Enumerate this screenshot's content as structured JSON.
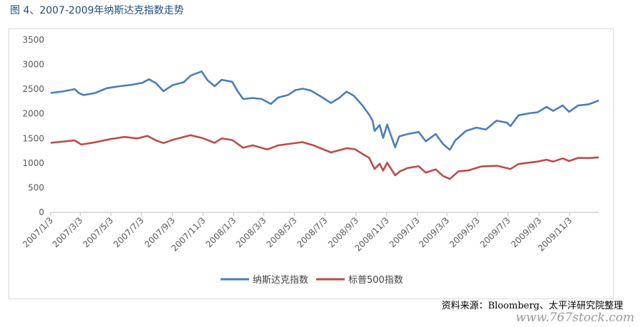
{
  "figure": {
    "title": "图 4、2007-2009年纳斯达克指数走势",
    "source": "资料来源：Bloomberg、太平洋研究院整理",
    "watermark": "www.767stock.com"
  },
  "chart_data": {
    "type": "line",
    "title": "",
    "xlabel": "",
    "ylabel": "",
    "ylim": [
      0,
      3500
    ],
    "yticks": [
      0,
      500,
      1000,
      1500,
      2000,
      2500,
      3000,
      3500
    ],
    "xticks": [
      "2007/1/3",
      "2007/3/3",
      "2007/5/3",
      "2007/7/3",
      "2007/9/3",
      "2007/11/3",
      "2008/1/3",
      "2008/3/3",
      "2008/5/3",
      "2008/7/3",
      "2008/9/3",
      "2008/11/3",
      "2009/1/3",
      "2009/3/3",
      "2009/5/3",
      "2009/7/3",
      "2009/9/3",
      "2009/11/3"
    ],
    "x_range": [
      "2007/1/3",
      "2009/12/31"
    ],
    "grid": false,
    "legend": "bottom",
    "series": [
      {
        "name": "纳斯达克指数",
        "color": "#4a7ebb",
        "points": [
          [
            "2007/1/3",
            2423
          ],
          [
            "2007/1/25",
            2450
          ],
          [
            "2007/2/20",
            2500
          ],
          [
            "2007/3/1",
            2415
          ],
          [
            "2007/3/10",
            2380
          ],
          [
            "2007/4/1",
            2420
          ],
          [
            "2007/4/25",
            2520
          ],
          [
            "2007/5/20",
            2560
          ],
          [
            "2007/6/15",
            2590
          ],
          [
            "2007/7/5",
            2630
          ],
          [
            "2007/7/18",
            2700
          ],
          [
            "2007/8/1",
            2620
          ],
          [
            "2007/8/16",
            2460
          ],
          [
            "2007/9/3",
            2580
          ],
          [
            "2007/9/25",
            2640
          ],
          [
            "2007/10/10",
            2780
          ],
          [
            "2007/10/31",
            2860
          ],
          [
            "2007/11/12",
            2680
          ],
          [
            "2007/11/26",
            2560
          ],
          [
            "2007/12/10",
            2690
          ],
          [
            "2007/12/31",
            2650
          ],
          [
            "2008/1/10",
            2470
          ],
          [
            "2008/1/22",
            2300
          ],
          [
            "2008/2/10",
            2320
          ],
          [
            "2008/2/28",
            2300
          ],
          [
            "2008/3/17",
            2200
          ],
          [
            "2008/4/1",
            2330
          ],
          [
            "2008/4/20",
            2380
          ],
          [
            "2008/5/5",
            2480
          ],
          [
            "2008/5/20",
            2510
          ],
          [
            "2008/6/5",
            2470
          ],
          [
            "2008/6/25",
            2350
          ],
          [
            "2008/7/15",
            2220
          ],
          [
            "2008/7/31",
            2320
          ],
          [
            "2008/8/15",
            2450
          ],
          [
            "2008/8/29",
            2370
          ],
          [
            "2008/9/15",
            2180
          ],
          [
            "2008/9/29",
            1983
          ],
          [
            "2008/10/6",
            1860
          ],
          [
            "2008/10/10",
            1650
          ],
          [
            "2008/10/20",
            1770
          ],
          [
            "2008/10/27",
            1510
          ],
          [
            "2008/11/4",
            1780
          ],
          [
            "2008/11/20",
            1320
          ],
          [
            "2008/11/28",
            1540
          ],
          [
            "2008/12/15",
            1590
          ],
          [
            "2009/1/6",
            1630
          ],
          [
            "2009/1/20",
            1440
          ],
          [
            "2009/2/9",
            1590
          ],
          [
            "2009/2/23",
            1390
          ],
          [
            "2009/3/9",
            1268
          ],
          [
            "2009/3/20",
            1460
          ],
          [
            "2009/4/10",
            1650
          ],
          [
            "2009/5/1",
            1720
          ],
          [
            "2009/5/20",
            1680
          ],
          [
            "2009/6/10",
            1860
          ],
          [
            "2009/7/1",
            1820
          ],
          [
            "2009/7/8",
            1750
          ],
          [
            "2009/7/24",
            1970
          ],
          [
            "2009/8/15",
            2010
          ],
          [
            "2009/8/31",
            2030
          ],
          [
            "2009/9/18",
            2140
          ],
          [
            "2009/10/1",
            2060
          ],
          [
            "2009/10/20",
            2170
          ],
          [
            "2009/11/2",
            2040
          ],
          [
            "2009/11/20",
            2170
          ],
          [
            "2009/12/10",
            2190
          ],
          [
            "2009/12/31",
            2269
          ]
        ]
      },
      {
        "name": "标普500指数",
        "color": "#be4b48",
        "points": [
          [
            "2007/1/3",
            1410
          ],
          [
            "2007/2/20",
            1460
          ],
          [
            "2007/3/5",
            1375
          ],
          [
            "2007/4/1",
            1420
          ],
          [
            "2007/4/30",
            1482
          ],
          [
            "2007/5/30",
            1530
          ],
          [
            "2007/6/25",
            1500
          ],
          [
            "2007/7/15",
            1552
          ],
          [
            "2007/8/1",
            1460
          ],
          [
            "2007/8/16",
            1406
          ],
          [
            "2007/9/3",
            1470
          ],
          [
            "2007/10/9",
            1565
          ],
          [
            "2007/11/1",
            1510
          ],
          [
            "2007/11/26",
            1410
          ],
          [
            "2007/12/10",
            1500
          ],
          [
            "2007/12/31",
            1468
          ],
          [
            "2008/1/22",
            1310
          ],
          [
            "2008/2/10",
            1360
          ],
          [
            "2008/3/10",
            1275
          ],
          [
            "2008/4/1",
            1360
          ],
          [
            "2008/5/19",
            1425
          ],
          [
            "2008/6/10",
            1360
          ],
          [
            "2008/7/15",
            1215
          ],
          [
            "2008/8/15",
            1300
          ],
          [
            "2008/9/1",
            1280
          ],
          [
            "2008/9/15",
            1190
          ],
          [
            "2008/9/29",
            1106
          ],
          [
            "2008/10/10",
            880
          ],
          [
            "2008/10/20",
            985
          ],
          [
            "2008/10/27",
            848
          ],
          [
            "2008/11/4",
            1005
          ],
          [
            "2008/11/20",
            752
          ],
          [
            "2008/12/1",
            840
          ],
          [
            "2008/12/15",
            900
          ],
          [
            "2009/1/6",
            934
          ],
          [
            "2009/1/20",
            805
          ],
          [
            "2009/2/9",
            870
          ],
          [
            "2009/2/23",
            740
          ],
          [
            "2009/3/9",
            677
          ],
          [
            "2009/3/26",
            830
          ],
          [
            "2009/4/15",
            850
          ],
          [
            "2009/5/10",
            930
          ],
          [
            "2009/6/12",
            945
          ],
          [
            "2009/7/8",
            880
          ],
          [
            "2009/7/24",
            980
          ],
          [
            "2009/8/31",
            1030
          ],
          [
            "2009/9/18",
            1068
          ],
          [
            "2009/10/1",
            1030
          ],
          [
            "2009/10/20",
            1095
          ],
          [
            "2009/11/2",
            1042
          ],
          [
            "2009/11/20",
            1105
          ],
          [
            "2009/12/10",
            1100
          ],
          [
            "2009/12/31",
            1115
          ]
        ]
      }
    ]
  }
}
